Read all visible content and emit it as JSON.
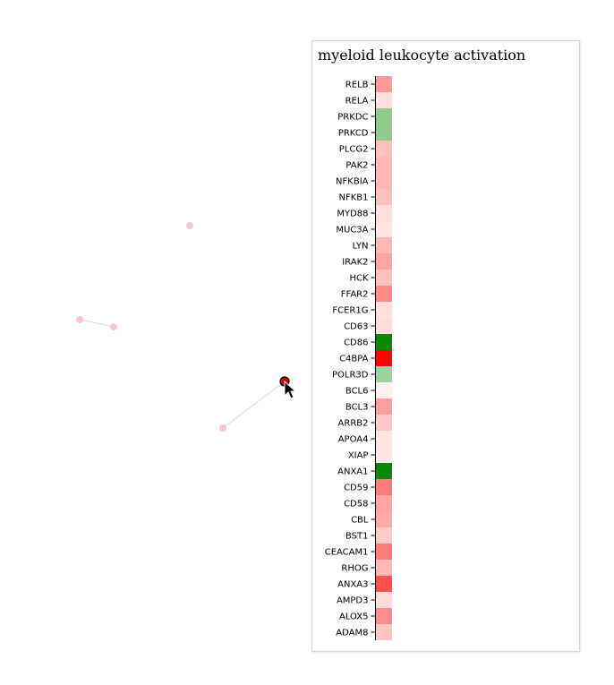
{
  "panel": {
    "title": "myeloid leukocyte activation"
  },
  "network": {
    "nodes": [
      {
        "name": "node-a",
        "color": "#f8c8c8"
      },
      {
        "name": "node-b",
        "color": "#f8c8c8"
      },
      {
        "name": "node-c",
        "color": "#f8c8c8"
      },
      {
        "name": "node-d",
        "color": "#f8c8c8"
      },
      {
        "name": "node-e-selected",
        "color": "#cc0000"
      }
    ],
    "edges": [
      {
        "from": "node-b",
        "to": "node-c"
      },
      {
        "from": "node-d",
        "to": "node-e-selected"
      }
    ]
  },
  "genes": [
    {
      "label": "RELB",
      "color": "#ff9a9a"
    },
    {
      "label": "RELA",
      "color": "#ffdede"
    },
    {
      "label": "PRKDC",
      "color": "#90cc90"
    },
    {
      "label": "PRKCD",
      "color": "#90cc90"
    },
    {
      "label": "PLCG2",
      "color": "#ffc0c0"
    },
    {
      "label": "PAK2",
      "color": "#ffb8b8"
    },
    {
      "label": "NFKBIA",
      "color": "#ffb8b8"
    },
    {
      "label": "NFKB1",
      "color": "#ffc0c0"
    },
    {
      "label": "MYD88",
      "color": "#ffdede"
    },
    {
      "label": "MUC3A",
      "color": "#ffe4e4"
    },
    {
      "label": "LYN",
      "color": "#ffb8b8"
    },
    {
      "label": "IRAK2",
      "color": "#ffa4a4"
    },
    {
      "label": "HCK",
      "color": "#ffc0c0"
    },
    {
      "label": "FFAR2",
      "color": "#ff8a8a"
    },
    {
      "label": "FCER1G",
      "color": "#ffe0e0"
    },
    {
      "label": "CD63",
      "color": "#ffdcdc"
    },
    {
      "label": "CD86",
      "color": "#0b860b"
    },
    {
      "label": "C4BPA",
      "color": "#ff0000"
    },
    {
      "label": "POLR3D",
      "color": "#9fd09f"
    },
    {
      "label": "BCL6",
      "color": "#fff0f0"
    },
    {
      "label": "BCL3",
      "color": "#ffa0a0"
    },
    {
      "label": "ARRB2",
      "color": "#ffc8c8"
    },
    {
      "label": "APOA4",
      "color": "#ffe4e4"
    },
    {
      "label": "XIAP",
      "color": "#ffe6e6"
    },
    {
      "label": "ANXA1",
      "color": "#0b860b"
    },
    {
      "label": "CD59",
      "color": "#ff7a7a"
    },
    {
      "label": "CD58",
      "color": "#ffa4a4"
    },
    {
      "label": "CBL",
      "color": "#ffaaaa"
    },
    {
      "label": "BST1",
      "color": "#ffcaca"
    },
    {
      "label": "CEACAM1",
      "color": "#ff7a7a"
    },
    {
      "label": "RHOG",
      "color": "#ffb8b8"
    },
    {
      "label": "ANXA3",
      "color": "#ff5050"
    },
    {
      "label": "AMPD3",
      "color": "#ffdcdc"
    },
    {
      "label": "ALOX5",
      "color": "#ff8c8c"
    },
    {
      "label": "ADAM8",
      "color": "#ffc4c4"
    }
  ]
}
